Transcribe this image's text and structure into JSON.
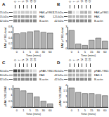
{
  "chart_data": [
    {
      "type": "heatmap",
      "title": "A",
      "categories": [
        "0",
        "1",
        "5",
        "15",
        "30",
        "60"
      ],
      "row_labels_left": [
        "125-kDa",
        "125-kDa",
        "42-kDa"
      ],
      "row_labels_right": [
        "FAK-pY861",
        "FAK",
        "B-actin"
      ],
      "cells": [
        [
          0.82,
          0.8,
          0.79,
          0.79,
          0.8,
          0.81
        ],
        [
          0.65,
          0.64,
          0.64,
          0.64,
          0.64,
          0.65
        ],
        [
          0.55,
          0.55,
          0.55,
          0.55,
          0.55,
          0.55
        ]
      ],
      "zlim": [
        0,
        1
      ]
    },
    {
      "type": "bar",
      "categories": [
        "0",
        "1",
        "5",
        "15",
        "30",
        "60"
      ],
      "values": [
        0.55,
        0.58,
        0.62,
        0.65,
        0.6,
        0.57
      ],
      "color": "#b0b0b0",
      "xlabel": "Time (mins)",
      "ylabel": "FAK-pY861/total",
      "ylim": [
        0.0,
        0.8
      ],
      "yticks": [
        0,
        0.2,
        0.4,
        0.6,
        0.8
      ],
      "grid": false
    },
    {
      "type": "heatmap",
      "title": "B",
      "categories": [
        "0",
        "1",
        "5",
        "15",
        "30",
        "60"
      ],
      "row_labels_left": [
        "125-kDa",
        "125-kDa",
        "42-kDa"
      ],
      "row_labels_right": [
        "FAK-pY861",
        "FAK",
        "B-actin"
      ],
      "cells": [
        [
          0.6,
          0.88,
          0.91,
          0.72,
          0.67,
          0.75
        ],
        [
          0.7,
          0.72,
          0.72,
          0.7,
          0.7,
          0.7
        ],
        [
          0.55,
          0.55,
          0.55,
          0.55,
          0.55,
          0.55
        ]
      ],
      "zlim": [
        0,
        1
      ]
    },
    {
      "type": "bar",
      "categories": [
        "0",
        "1",
        "5",
        "15",
        "30",
        "60"
      ],
      "values": [
        2.5,
        0.65,
        0.45,
        1.15,
        1.45,
        1.05
      ],
      "color": "#b0b0b0",
      "xlabel": "Time (mins)",
      "ylabel": "FAK-pY861/total",
      "ylim": [
        0.0,
        3.0
      ],
      "yticks": [
        0,
        1,
        2,
        3
      ],
      "grid": false
    },
    {
      "type": "heatmap",
      "title": "C",
      "categories": [
        "0",
        "1",
        "5",
        "15",
        "30",
        "60"
      ],
      "row_labels_left": [
        "80-kDa",
        "80-kDa",
        "42-kDa"
      ],
      "row_labels_right": [
        "pFAK-Y861",
        "FAK",
        "B-actin"
      ],
      "cells": [
        [
          0.28,
          0.36,
          0.48,
          0.68,
          0.79,
          0.86
        ],
        [
          0.55,
          0.57,
          0.57,
          0.57,
          0.57,
          0.58
        ],
        [
          0.55,
          0.55,
          0.55,
          0.55,
          0.55,
          0.55
        ]
      ],
      "zlim": [
        0,
        1
      ]
    },
    {
      "type": "bar",
      "categories": [
        "0",
        "1",
        "5",
        "15",
        "30",
        "60"
      ],
      "values": [
        1.55,
        1.35,
        1.15,
        0.85,
        0.5,
        0.28
      ],
      "color": "#b0b0b0",
      "xlabel": "Time (mins)",
      "ylabel": "pFAK-Y861/FAK",
      "ylim": [
        0.0,
        1.8
      ],
      "yticks": [
        0,
        0.5,
        1,
        1.5
      ],
      "grid": false
    },
    {
      "type": "heatmap",
      "title": "D",
      "categories": [
        "0",
        "1",
        "5",
        "15",
        "30",
        "60"
      ],
      "row_labels_left": [
        "80-kDa",
        "42-kDa",
        "42-kDa"
      ],
      "row_labels_right": [
        "pFAK-Y861",
        "FAK-1",
        "B-actin"
      ],
      "cells": [
        [
          0.55,
          0.62,
          0.65,
          0.65,
          0.67,
          0.7
        ],
        [
          0.68,
          0.7,
          0.7,
          0.7,
          0.7,
          0.7
        ],
        [
          0.55,
          0.55,
          0.55,
          0.55,
          0.55,
          0.55
        ]
      ],
      "zlim": [
        0,
        1
      ]
    },
    {
      "type": "bar",
      "categories": [
        "0",
        "1",
        "5",
        "15",
        "30",
        "60"
      ],
      "values": [
        1.75,
        1.35,
        1.25,
        1.25,
        1.15,
        1.05
      ],
      "color": "#b0b0b0",
      "xlabel": "Time (mins)",
      "ylabel": "pFAK-Y861/FAK",
      "ylim": [
        0.0,
        2.0
      ],
      "yticks": [
        0,
        0.5,
        1,
        1.5,
        2
      ],
      "grid": false
    }
  ]
}
